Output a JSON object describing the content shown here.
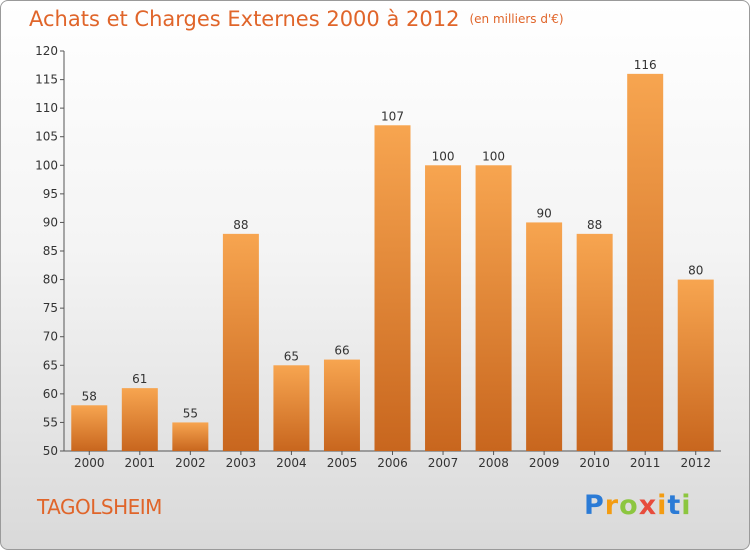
{
  "title": "Achats et Charges Externes 2000 à 2012",
  "unit": "(en milliers d'€)",
  "commune": "TAGOLSHEIM",
  "brand": {
    "letters": [
      "P",
      "r",
      "o",
      "x",
      "i",
      "t",
      "i"
    ],
    "colors": [
      "#2b7bd6",
      "#f39c12",
      "#8cc63f",
      "#e74c3c",
      "#f39c12",
      "#2b7bd6",
      "#8cc63f"
    ]
  },
  "colors": {
    "bar_top": "#f7a550",
    "bar_bottom": "#c8661e",
    "title": "#e0652a"
  },
  "chart_data": {
    "type": "bar",
    "categories": [
      "2000",
      "2001",
      "2002",
      "2003",
      "2004",
      "2005",
      "2006",
      "2007",
      "2008",
      "2009",
      "2010",
      "2011",
      "2012"
    ],
    "values": [
      58,
      61,
      55,
      88,
      65,
      66,
      107,
      100,
      100,
      90,
      88,
      116,
      80
    ],
    "ylim": [
      50,
      120
    ],
    "yticks": [
      50,
      55,
      60,
      65,
      70,
      75,
      80,
      85,
      90,
      95,
      100,
      105,
      110,
      115,
      120
    ],
    "grid": false,
    "xlabel": "",
    "ylabel": ""
  }
}
